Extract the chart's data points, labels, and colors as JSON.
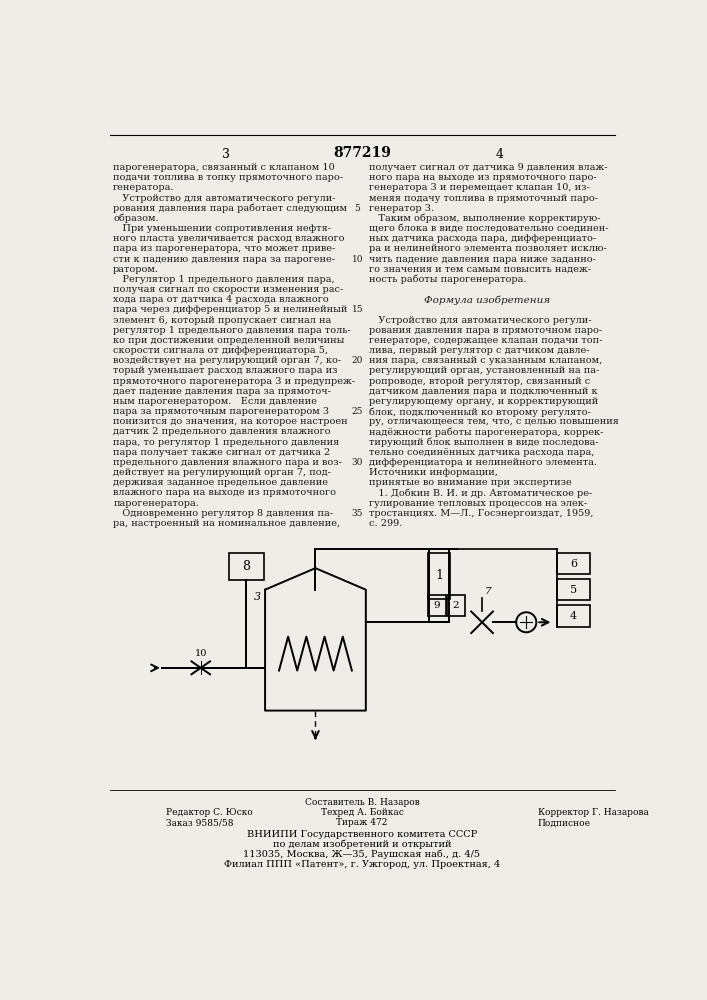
{
  "bg_color": "#f0ede8",
  "title_number": "877219",
  "page_left": "3",
  "page_right": "4",
  "text_left": [
    "парогенератора, связанный с клапаном 10",
    "подачи топлива в топку прямоточного паро-",
    "генератора.",
    "   Устройство для автоматического регули-",
    "рования давления пара работает следующим",
    "образом.",
    "   При уменьшении сопротивления нефтя-",
    "ного пласта увеличивается расход влажного",
    "пара из парогенератора, что может приве-",
    "сти к падению давления пара за парогене-",
    "ратором.",
    "   Регулятор 1 предельного давления пара,",
    "получая сигнал по скорости изменения рас-",
    "хода пара от датчика 4 расхода влажного",
    "пара через дифференциатор 5 и нелинейный",
    "элемент 6, который пропускает сигнал на",
    "регулятор 1 предельного давления пара толь-",
    "ко при достижении определенной величины",
    "скорости сигнала от дифференциатора 5,",
    "воздействует на регулирующий орган 7, ко-",
    "торый уменьшает расход влажного пара из",
    "прямоточного парогенератора 3 и предупреж-",
    "дает падение давления пара за прямоточ-",
    "ным парогенератором.   Если давление",
    "пара за прямоточным парогенератором 3",
    "понизится до значения, на которое настроен",
    "датчик 2 предельного давления влажного",
    "пара, то регулятор 1 предельного давления",
    "пара получает также сигнал от датчика 2",
    "предельного давления влажного пара и воз-",
    "действует на регулирующий орган 7, под-",
    "держивая заданное предельное давление",
    "влажного пара на выходе из прямоточного",
    "парогенератора.",
    "   Одновременно регулятор 8 давления па-",
    "ра, настроенный на номинальное давление,"
  ],
  "text_right": [
    "получает сигнал от датчика 9 давления влаж-",
    "ного пара на выходе из прямоточного паро-",
    "генератора 3 и перемещает клапан 10, из-",
    "меняя подачу топлива в прямоточный паро-",
    "генератор 3.",
    "   Таким образом, выполнение корректирую-",
    "щего блока в виде последовательно соединен-",
    "ных датчика расхода пара, дифференциато-",
    "ра и нелинейного элемента позволяет исклю-",
    "чить падение давления пара ниже заданно-",
    "го значения и тем самым повысить надеж-",
    "ность работы парогенератора.",
    "",
    "Формула изобретения",
    "",
    "   Устройство для автоматического регули-",
    "рования давления пара в прямоточном паро-",
    "генераторе, содержащее клапан подачи топ-",
    "лива, первый регулятор с датчиком давле-",
    "ния пара, связанный с указанным клапаном,",
    "регулирующий орган, установленный на па-",
    "ропроводе, второй регулятор, связанный с",
    "датчиком давления пара и подключенный к",
    "регулирующему органу, и корректирующий",
    "блок, подключенный ко второму регулято-",
    "ру, отличающееся тем, что, с целью повышения",
    "надёжности работы парогенератора, коррек-",
    "тирующий блок выполнен в виде последова-",
    "тельно соединённых датчика расхода пара,",
    "дифференциатора и нелинейного элемента.",
    "Источники информации,",
    "принятые во внимание при экспертизе",
    "   1. Добкин В. И. и др. Автоматическое ре-",
    "гулирование тепловых процессов на элек-",
    "тростанциях. М—Л., Госэнергоиздат, 1959,",
    "с. 299."
  ],
  "footer_lines": [
    "Составитель В. Назаров",
    "Редактор С. Юско",
    "Техред А. Бойкас",
    "Корректор Г. Назарова",
    "Заказ 9585/58",
    "Тираж 472",
    "Подписное",
    "ВНИИПИ Государственного комитета СССР",
    "по делам изобретений и открытий",
    "113035, Москва, Ж—35, Раушская наб., д. 4/5",
    "Филиал ППП «Патент», г. Ужгород, ул. Проектная, 4"
  ],
  "line_numbers": [
    "5",
    "10",
    "15",
    "20",
    "25",
    "30"
  ]
}
